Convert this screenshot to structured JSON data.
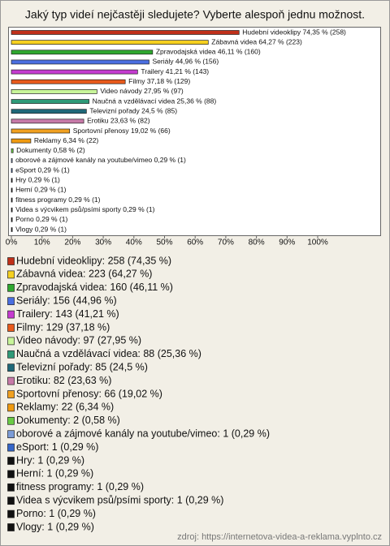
{
  "chart_data": {
    "type": "bar",
    "orientation": "horizontal",
    "title": "Jaký typ videí nejčastěji sledujete? Vyberte alespoň jednu možnost.",
    "source": "zdroj: https://internetova-videa-a-reklama.vyplnto.cz",
    "values": [
      74.35,
      64.27,
      46.11,
      44.96,
      41.21,
      37.18,
      27.95,
      25.36,
      24.5,
      23.63,
      19.02,
      6.34,
      0.58,
      0.29,
      0.29,
      0.29,
      0.29,
      0.29,
      0.29,
      0.29,
      0.29
    ],
    "value_labels": [
      "Hudební videoklipy 74,35 % (258)",
      "Zábavná videa 64,27 % (223)",
      "Zpravodajská videa 46,11 % (160)",
      "Seriály 44,96 % (156)",
      "Trailery 41,21 % (143)",
      "Filmy 37,18 % (129)",
      "Video návody 27,95 % (97)",
      "Naučná a vzdělávací videa 25,36 % (88)",
      "Televizní pořady 24,5 % (85)",
      "Erotiku 23,63 % (82)",
      "Sportovní přenosy 19,02 % (66)",
      "Reklamy 6,34 % (22)",
      "Dokumenty 0,58 % (2)",
      "oborové a zájmové kanály na youtube/vimeo 0,29 % (1)",
      "eSport 0,29 % (1)",
      "Hry 0,29 % (1)",
      "Herní 0,29 % (1)",
      "fitness programy 0,29 % (1)",
      "Videa s výcvikem psů/psími sporty 0,29 % (1)",
      "Porno 0,29 % (1)",
      "Vlogy 0,29 % (1)"
    ],
    "legend_labels": [
      "Hudební videoklipy: 258 (74,35 %)",
      "Zábavná videa: 223 (64,27 %)",
      "Zpravodajská videa: 160 (46,11 %)",
      "Seriály: 156 (44,96 %)",
      "Trailery: 143 (41,21 %)",
      "Filmy: 129 (37,18 %)",
      "Video návody: 97 (27,95 %)",
      "Naučná a vzdělávací videa: 88 (25,36 %)",
      "Televizní pořady: 85 (24,5 %)",
      "Erotiku: 82 (23,63 %)",
      "Sportovní přenosy: 66 (19,02 %)",
      "Reklamy: 22 (6,34 %)",
      "Dokumenty: 2 (0,58 %)",
      "oborové a zájmové kanály na youtube/vimeo: 1 (0,29 %)",
      "eSport: 1 (0,29 %)",
      "Hry: 1 (0,29 %)",
      "Herní: 1 (0,29 %)",
      "fitness programy: 1 (0,29 %)",
      "Videa s výcvikem psů/psími sporty: 1 (0,29 %)",
      "Porno: 1 (0,29 %)",
      "Vlogy: 1 (0,29 %)"
    ],
    "colors": [
      "#c0301a",
      "#f5d020",
      "#2fa82f",
      "#4a6ee0",
      "#c53bd0",
      "#e85a1c",
      "#c8f59a",
      "#2f9a78",
      "#1f6878",
      "#c77aa8",
      "#f0a020",
      "#f09a10",
      "#6acb45",
      "#7c9cd6",
      "#3566c8",
      "#111111",
      "#111111",
      "#111111",
      "#111111",
      "#111111",
      "#111111"
    ],
    "xlim": [
      0,
      120
    ],
    "xticks": [
      {
        "value": 0,
        "label": "0%"
      },
      {
        "value": 10,
        "label": "10%"
      },
      {
        "value": 20,
        "label": "20%"
      },
      {
        "value": 30,
        "label": "30%"
      },
      {
        "value": 40,
        "label": "40%"
      },
      {
        "value": 50,
        "label": "50%"
      },
      {
        "value": 60,
        "label": "60%"
      },
      {
        "value": 70,
        "label": "70%"
      },
      {
        "value": 80,
        "label": "80%"
      },
      {
        "value": 90,
        "label": "90%"
      },
      {
        "value": 100,
        "label": "100%"
      }
    ],
    "grid": false
  }
}
